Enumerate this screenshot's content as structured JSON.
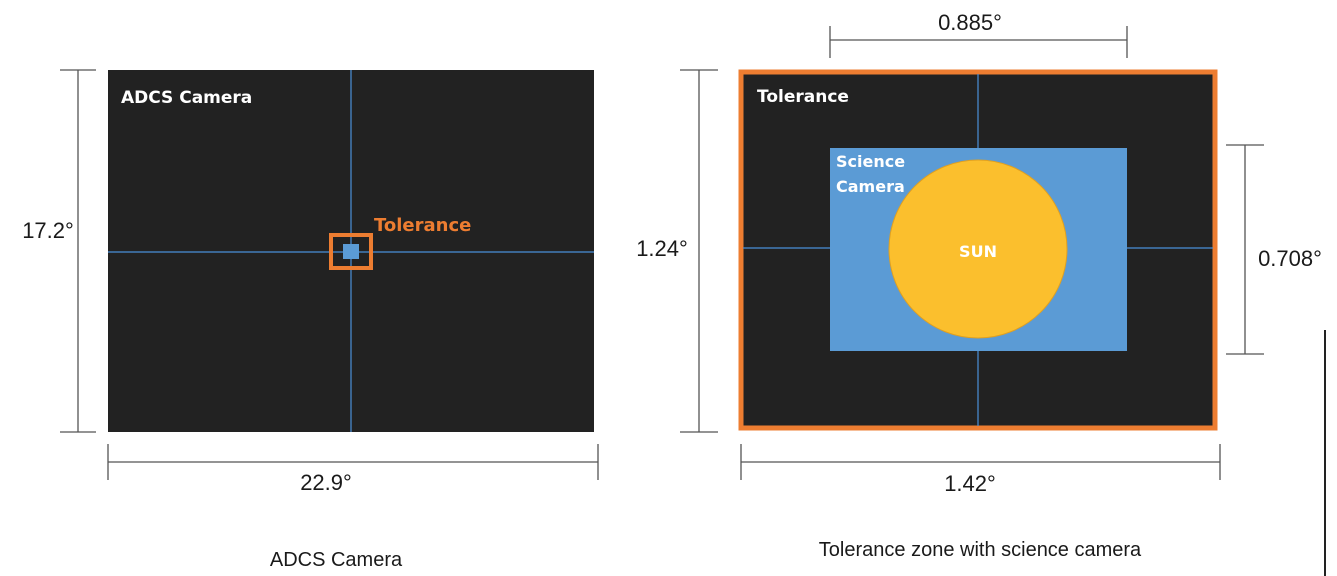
{
  "left": {
    "panel_label": "ADCS Camera",
    "tolerance_label": "Tolerance",
    "height_dim": "17.2°",
    "width_dim": "22.9°",
    "caption": "ADCS Camera"
  },
  "right": {
    "panel_label": "Tolerance",
    "science_label_line1": "Science",
    "science_label_line2": "Camera",
    "sun_label": "SUN",
    "top_dim": "0.885°",
    "height_dim": "1.24°",
    "science_height_dim": "0.708°",
    "width_dim": "1.42°",
    "caption": "Tolerance zone with science camera"
  },
  "colors": {
    "panel_fill": "#222222",
    "crosshair": "#4a90d9",
    "tolerance": "#ed7d31",
    "science_camera": "#5b9bd5",
    "sun": "#fbbf2d",
    "dimension_line": "#555555"
  }
}
